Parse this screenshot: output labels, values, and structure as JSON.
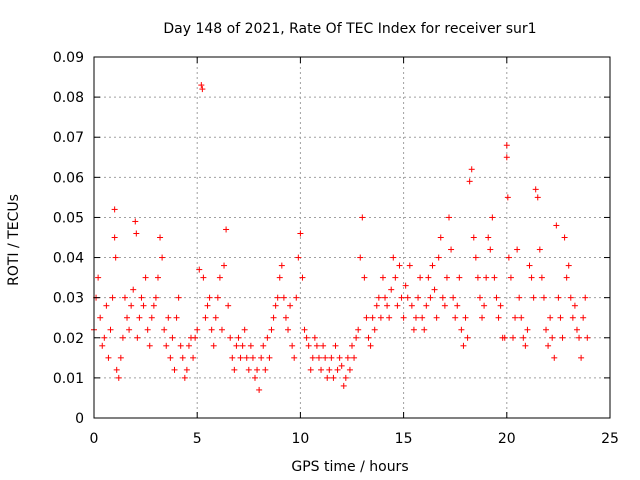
{
  "chart_data": {
    "type": "scatter",
    "title": "Day 148 of 2021, Rate Of TEC Index for receiver sur1",
    "xlabel": "GPS time / hours",
    "ylabel": "ROTI / TECUs",
    "xlim": [
      0,
      25
    ],
    "ylim": [
      0,
      0.09
    ],
    "xticks": [
      0,
      5,
      10,
      15,
      20,
      25
    ],
    "yticks": [
      0,
      0.01,
      0.02,
      0.03,
      0.04,
      0.05,
      0.06,
      0.07,
      0.08,
      0.09
    ],
    "xtick_labels": [
      "0",
      "5",
      "10",
      "15",
      "20",
      "25"
    ],
    "ytick_labels": [
      "0",
      "0.01",
      "0.02",
      "0.03",
      "0.04",
      "0.05",
      "0.06",
      "0.07",
      "0.08",
      "0.09"
    ],
    "grid": true,
    "marker": "plus",
    "color": "#ff0000",
    "series": [
      {
        "x": [
          0.0,
          0.1,
          0.2,
          0.3,
          0.4,
          0.5,
          0.6,
          0.7,
          0.8,
          0.9,
          1.0,
          1.0,
          1.05,
          1.1,
          1.2,
          1.3,
          1.4,
          1.5,
          1.6,
          1.7,
          1.8,
          1.9,
          2.0,
          2.05,
          2.1,
          2.2,
          2.3,
          2.4,
          2.5,
          2.6,
          2.7,
          2.8,
          2.9,
          3.0,
          3.1,
          3.2,
          3.3,
          3.4,
          3.5,
          3.6,
          3.7,
          3.8,
          3.9,
          4.0,
          4.1,
          4.2,
          4.3,
          4.4,
          4.5,
          4.6,
          4.7,
          4.8,
          4.9,
          5.0,
          5.1,
          5.2,
          5.25,
          5.3,
          5.4,
          5.5,
          5.6,
          5.7,
          5.8,
          5.9,
          6.0,
          6.1,
          6.2,
          6.3,
          6.4,
          6.5,
          6.6,
          6.7,
          6.8,
          6.9,
          7.0,
          7.1,
          7.2,
          7.3,
          7.4,
          7.5,
          7.6,
          7.7,
          7.8,
          7.9,
          8.0,
          8.1,
          8.2,
          8.3,
          8.4,
          8.5,
          8.6,
          8.7,
          8.8,
          8.9,
          9.0,
          9.1,
          9.2,
          9.3,
          9.4,
          9.5,
          9.6,
          9.7,
          9.8,
          9.9,
          10.0,
          10.1,
          10.2,
          10.3,
          10.4,
          10.5,
          10.6,
          10.7,
          10.8,
          10.9,
          11.0,
          11.1,
          11.2,
          11.3,
          11.4,
          11.5,
          11.6,
          11.7,
          11.8,
          11.9,
          12.0,
          12.1,
          12.2,
          12.3,
          12.4,
          12.5,
          12.6,
          12.7,
          12.8,
          12.9,
          13.0,
          13.1,
          13.2,
          13.3,
          13.4,
          13.5,
          13.6,
          13.7,
          13.8,
          13.9,
          14.0,
          14.1,
          14.2,
          14.3,
          14.4,
          14.5,
          14.6,
          14.7,
          14.8,
          14.9,
          15.0,
          15.1,
          15.2,
          15.3,
          15.4,
          15.5,
          15.6,
          15.7,
          15.8,
          15.9,
          16.0,
          16.1,
          16.2,
          16.3,
          16.4,
          16.5,
          16.6,
          16.7,
          16.8,
          16.9,
          17.0,
          17.1,
          17.2,
          17.3,
          17.4,
          17.5,
          17.6,
          17.7,
          17.8,
          17.9,
          18.0,
          18.1,
          18.2,
          18.3,
          18.4,
          18.5,
          18.6,
          18.7,
          18.8,
          18.9,
          19.0,
          19.1,
          19.2,
          19.3,
          19.4,
          19.5,
          19.6,
          19.7,
          19.8,
          19.9,
          20.0,
          20.0,
          20.05,
          20.1,
          20.2,
          20.3,
          20.4,
          20.5,
          20.6,
          20.7,
          20.8,
          20.9,
          21.0,
          21.1,
          21.2,
          21.3,
          21.4,
          21.5,
          21.6,
          21.7,
          21.8,
          21.9,
          22.0,
          22.1,
          22.2,
          22.3,
          22.4,
          22.5,
          22.6,
          22.7,
          22.8,
          22.9,
          23.0,
          23.1,
          23.2,
          23.3,
          23.4,
          23.5,
          23.6,
          23.7,
          23.8,
          23.9
        ],
        "y": [
          0.022,
          0.03,
          0.035,
          0.025,
          0.018,
          0.02,
          0.028,
          0.015,
          0.022,
          0.03,
          0.052,
          0.045,
          0.04,
          0.012,
          0.01,
          0.015,
          0.02,
          0.03,
          0.025,
          0.022,
          0.028,
          0.032,
          0.049,
          0.046,
          0.02,
          0.025,
          0.03,
          0.028,
          0.035,
          0.022,
          0.018,
          0.025,
          0.028,
          0.03,
          0.035,
          0.045,
          0.04,
          0.022,
          0.018,
          0.025,
          0.015,
          0.02,
          0.012,
          0.025,
          0.03,
          0.018,
          0.015,
          0.01,
          0.012,
          0.018,
          0.02,
          0.015,
          0.02,
          0.022,
          0.037,
          0.083,
          0.082,
          0.035,
          0.025,
          0.028,
          0.03,
          0.022,
          0.018,
          0.025,
          0.03,
          0.035,
          0.022,
          0.038,
          0.047,
          0.028,
          0.02,
          0.015,
          0.012,
          0.018,
          0.02,
          0.015,
          0.018,
          0.022,
          0.015,
          0.012,
          0.018,
          0.015,
          0.01,
          0.012,
          0.007,
          0.015,
          0.018,
          0.012,
          0.02,
          0.015,
          0.022,
          0.025,
          0.028,
          0.03,
          0.035,
          0.038,
          0.03,
          0.025,
          0.022,
          0.028,
          0.018,
          0.015,
          0.03,
          0.04,
          0.046,
          0.035,
          0.022,
          0.02,
          0.018,
          0.012,
          0.015,
          0.02,
          0.018,
          0.015,
          0.012,
          0.018,
          0.015,
          0.01,
          0.012,
          0.015,
          0.01,
          0.018,
          0.012,
          0.015,
          0.013,
          0.008,
          0.01,
          0.015,
          0.012,
          0.018,
          0.015,
          0.02,
          0.022,
          0.04,
          0.05,
          0.035,
          0.025,
          0.02,
          0.018,
          0.025,
          0.022,
          0.028,
          0.03,
          0.025,
          0.035,
          0.03,
          0.028,
          0.025,
          0.032,
          0.04,
          0.035,
          0.028,
          0.038,
          0.03,
          0.025,
          0.033,
          0.03,
          0.038,
          0.028,
          0.022,
          0.025,
          0.03,
          0.035,
          0.025,
          0.022,
          0.028,
          0.035,
          0.03,
          0.038,
          0.032,
          0.025,
          0.04,
          0.045,
          0.03,
          0.028,
          0.035,
          0.05,
          0.042,
          0.03,
          0.025,
          0.028,
          0.035,
          0.022,
          0.018,
          0.025,
          0.02,
          0.059,
          0.062,
          0.045,
          0.04,
          0.035,
          0.03,
          0.025,
          0.028,
          0.035,
          0.045,
          0.042,
          0.05,
          0.035,
          0.03,
          0.025,
          0.028,
          0.02,
          0.02,
          0.068,
          0.065,
          0.055,
          0.04,
          0.035,
          0.02,
          0.025,
          0.042,
          0.03,
          0.025,
          0.02,
          0.018,
          0.022,
          0.038,
          0.035,
          0.03,
          0.057,
          0.055,
          0.042,
          0.035,
          0.03,
          0.022,
          0.018,
          0.025,
          0.02,
          0.015,
          0.048,
          0.03,
          0.025,
          0.02,
          0.045,
          0.035,
          0.038,
          0.03,
          0.025,
          0.028,
          0.022,
          0.02,
          0.015,
          0.025,
          0.03,
          0.02
        ]
      }
    ]
  }
}
